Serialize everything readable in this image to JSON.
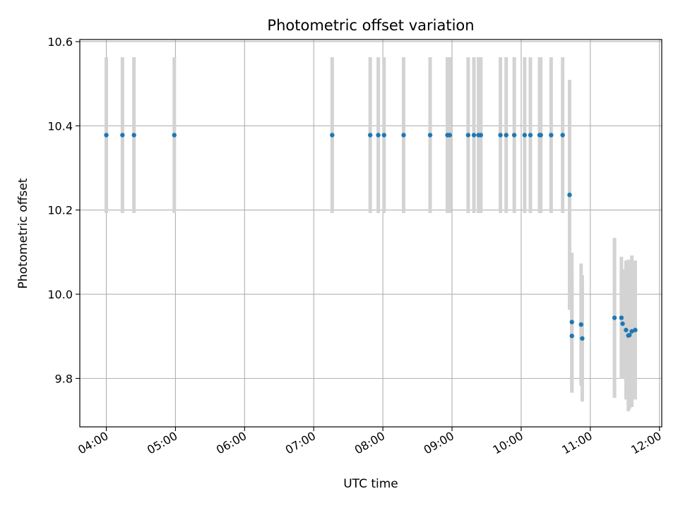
{
  "chart_data": {
    "type": "scatter",
    "title": "Photometric offset variation",
    "xlabel": "UTC time",
    "ylabel": "Photometric offset",
    "xlim": [
      "03:37",
      "12:02"
    ],
    "ylim": [
      9.685,
      10.605
    ],
    "grid": true,
    "x_ticks": [
      "04:00",
      "05:00",
      "06:00",
      "07:00",
      "08:00",
      "09:00",
      "10:00",
      "11:00",
      "12:00"
    ],
    "y_ticks": [
      "9.8",
      "10.0",
      "10.2",
      "10.4",
      "10.6"
    ],
    "colors": {
      "point": "#1f77b4",
      "errorbar": "#d3d3d3",
      "grid": "#b0b0b0"
    },
    "series": [
      {
        "points": [
          {
            "x": "04:00",
            "y": 10.378,
            "yerr": 0.185
          },
          {
            "x": "04:14",
            "y": 10.378,
            "yerr": 0.185
          },
          {
            "x": "04:24",
            "y": 10.378,
            "yerr": 0.185
          },
          {
            "x": "04:59",
            "y": 10.378,
            "yerr": 0.185
          },
          {
            "x": "07:16",
            "y": 10.378,
            "yerr": 0.185
          },
          {
            "x": "07:49",
            "y": 10.378,
            "yerr": 0.185
          },
          {
            "x": "07:56",
            "y": 10.378,
            "yerr": 0.185
          },
          {
            "x": "08:01",
            "y": 10.378,
            "yerr": 0.185
          },
          {
            "x": "08:18",
            "y": 10.378,
            "yerr": 0.185
          },
          {
            "x": "08:41",
            "y": 10.378,
            "yerr": 0.185
          },
          {
            "x": "08:56",
            "y": 10.378,
            "yerr": 0.185
          },
          {
            "x": "08:58",
            "y": 10.378,
            "yerr": 0.185
          },
          {
            "x": "09:14",
            "y": 10.378,
            "yerr": 0.185
          },
          {
            "x": "09:19",
            "y": 10.378,
            "yerr": 0.185
          },
          {
            "x": "09:23",
            "y": 10.378,
            "yerr": 0.185
          },
          {
            "x": "09:25",
            "y": 10.378,
            "yerr": 0.185
          },
          {
            "x": "09:42",
            "y": 10.378,
            "yerr": 0.185
          },
          {
            "x": "09:47",
            "y": 10.378,
            "yerr": 0.185
          },
          {
            "x": "09:54",
            "y": 10.378,
            "yerr": 0.185
          },
          {
            "x": "10:03",
            "y": 10.378,
            "yerr": 0.185
          },
          {
            "x": "10:08",
            "y": 10.378,
            "yerr": 0.185
          },
          {
            "x": "10:16",
            "y": 10.378,
            "yerr": 0.185
          },
          {
            "x": "10:17",
            "y": 10.378,
            "yerr": 0.185
          },
          {
            "x": "10:26",
            "y": 10.378,
            "yerr": 0.185
          },
          {
            "x": "10:36",
            "y": 10.378,
            "yerr": 0.185
          },
          {
            "x": "10:42",
            "y": 10.236,
            "yerr": 0.273
          },
          {
            "x": "10:44",
            "y": 9.934,
            "yerr": 0.165
          },
          {
            "x": "10:44",
            "y": 9.901,
            "yerr": 0.135
          },
          {
            "x": "10:52",
            "y": 9.928,
            "yerr": 0.145
          },
          {
            "x": "10:53",
            "y": 9.895,
            "yerr": 0.15
          },
          {
            "x": "11:21",
            "y": 9.944,
            "yerr": 0.19
          },
          {
            "x": "11:27",
            "y": 9.944,
            "yerr": 0.145
          },
          {
            "x": "11:28",
            "y": 9.93,
            "yerr": 0.13
          },
          {
            "x": "11:31",
            "y": 9.915,
            "yerr": 0.165
          },
          {
            "x": "11:33",
            "y": 9.902,
            "yerr": 0.18
          },
          {
            "x": "11:34",
            "y": 9.903,
            "yerr": 0.175
          },
          {
            "x": "11:36",
            "y": 9.912,
            "yerr": 0.18
          },
          {
            "x": "11:39",
            "y": 9.915,
            "yerr": 0.165
          }
        ]
      }
    ]
  }
}
